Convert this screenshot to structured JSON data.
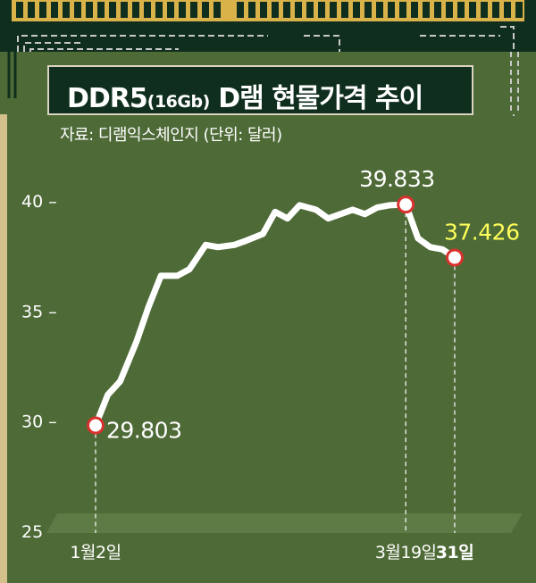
{
  "chart_data": {
    "type": "line",
    "title_main": "DDR5",
    "title_spec": "(16Gb)",
    "title_rest": "D램 현물가격 추이",
    "source": "자료: 디램익스체인지 (단위: 달러)",
    "ylim": [
      25,
      41
    ],
    "yticks": [
      {
        "value": 25,
        "label": "25"
      },
      {
        "value": 30,
        "label": "30 –"
      },
      {
        "value": 35,
        "label": "35 –"
      },
      {
        "value": 40,
        "label": "40 –"
      }
    ],
    "xlim": [
      "01-02",
      "03-31"
    ],
    "xlabels": [
      {
        "x": "01-02",
        "label": "1월2일",
        "bold": false
      },
      {
        "x": "03-19",
        "label": "3월19일",
        "bold": false
      },
      {
        "x": "03-31",
        "label": "31일",
        "bold": true
      }
    ],
    "series": [
      {
        "x": [
          "01-02",
          "01-05",
          "01-08",
          "01-12",
          "01-15",
          "01-18",
          "01-22",
          "01-25",
          "01-29",
          "02-01",
          "02-05",
          "02-08",
          "02-12",
          "02-15",
          "02-18",
          "02-21",
          "02-25",
          "02-28",
          "03-03",
          "03-06",
          "03-09",
          "03-12",
          "03-15",
          "03-19",
          "03-22",
          "03-25",
          "03-28",
          "03-31"
        ],
        "values": [
          29.803,
          31.2,
          31.8,
          33.6,
          35.2,
          36.6,
          36.6,
          36.9,
          38.0,
          37.9,
          38.0,
          38.2,
          38.5,
          39.5,
          39.2,
          39.8,
          39.6,
          39.2,
          39.4,
          39.6,
          39.4,
          39.7,
          39.8,
          39.833,
          38.3,
          37.9,
          37.8,
          37.426
        ]
      }
    ],
    "annotations": [
      {
        "x": "01-02",
        "value": 29.803,
        "label": "29.803",
        "color": "#ffffff"
      },
      {
        "x": "03-19",
        "value": 39.833,
        "label": "39.833",
        "color": "#ffffff"
      },
      {
        "x": "03-31",
        "value": 37.426,
        "label": "37.426",
        "color": "#ffff5a"
      }
    ],
    "colors": {
      "background": "#4e6a37",
      "line": "#ffffff",
      "marker_fill": "#ffffff",
      "marker_ring": "#d8322e",
      "floor": "#5e7b45",
      "axis_bar": "#d4c08a",
      "highlight": "#ffff5a",
      "circuit_bg": "#0f2e1e",
      "circuit_gold": "#d9b24a"
    }
  }
}
